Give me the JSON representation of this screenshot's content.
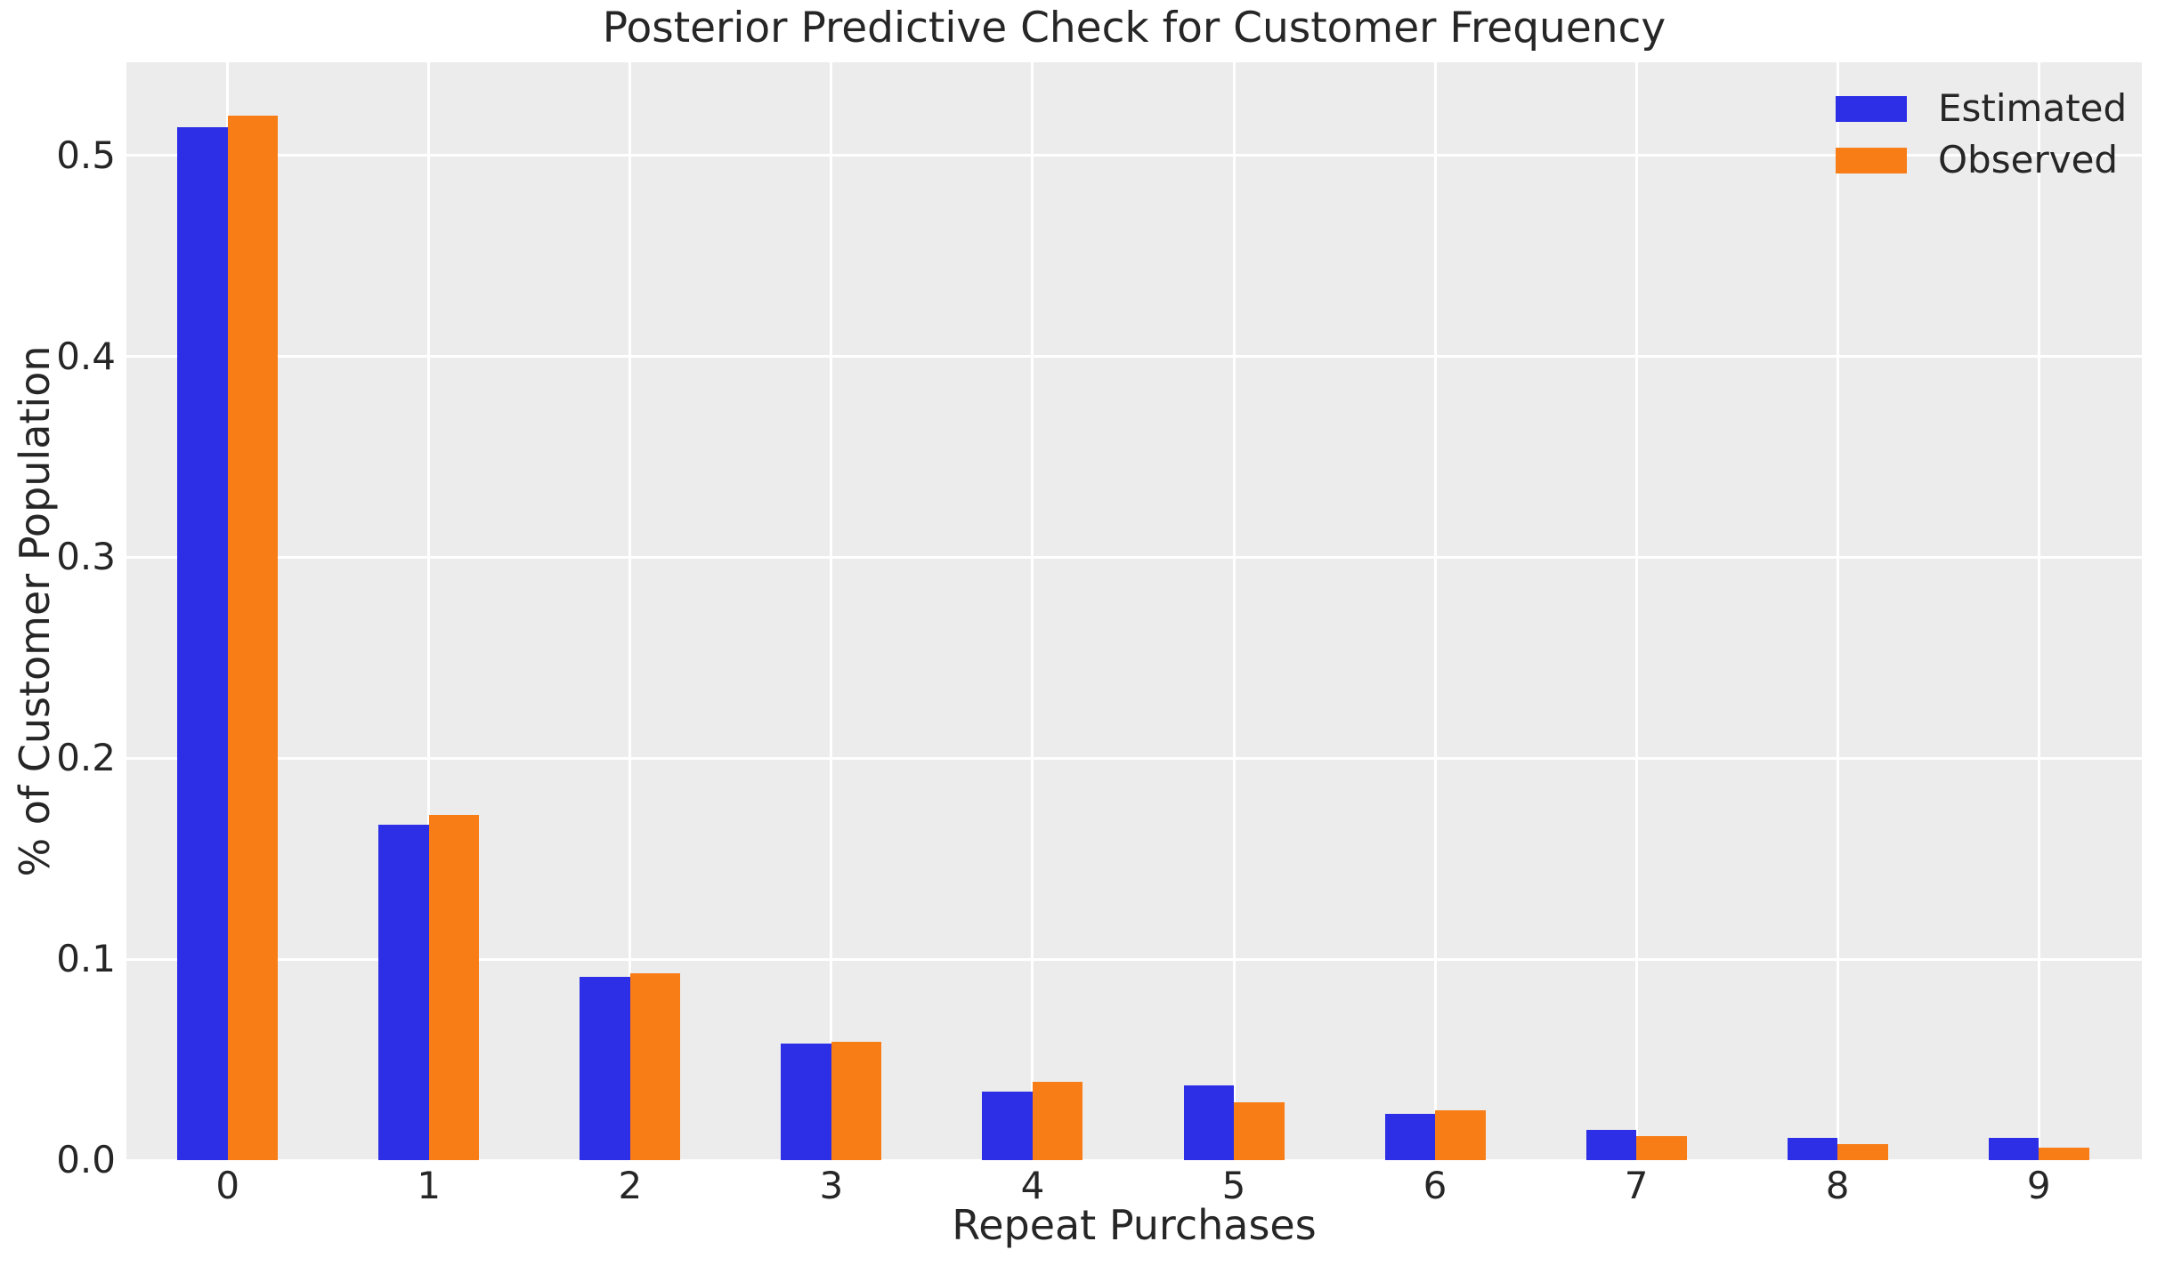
{
  "chart_data": {
    "type": "bar",
    "title": "Posterior Predictive Check for Customer Frequency",
    "xlabel": "Repeat Purchases",
    "ylabel": "% of Customer Population",
    "categories": [
      "0",
      "1",
      "2",
      "3",
      "4",
      "5",
      "6",
      "7",
      "8",
      "9"
    ],
    "series": [
      {
        "name": "Estimated",
        "color": "#2d2fe6",
        "values": [
          0.514,
          0.167,
          0.091,
          0.058,
          0.034,
          0.037,
          0.023,
          0.015,
          0.011,
          0.011
        ]
      },
      {
        "name": "Observed",
        "color": "#f87d16",
        "values": [
          0.52,
          0.172,
          0.093,
          0.059,
          0.039,
          0.029,
          0.025,
          0.012,
          0.008,
          0.006
        ]
      }
    ],
    "ylim": [
      0,
      0.5464
    ],
    "yticks": [
      0.0,
      0.1,
      0.2,
      0.3,
      0.4,
      0.5
    ],
    "ytick_labels": [
      "0.0",
      "0.1",
      "0.2",
      "0.3",
      "0.4",
      "0.5"
    ],
    "grid": true,
    "legend_position": "upper right"
  },
  "colors": {
    "figure_background": "#ffffff",
    "plot_background": "#ececec",
    "gridline": "#ffffff",
    "text": "#262626",
    "estimated": "#2d2fe6",
    "observed": "#f87d16"
  }
}
